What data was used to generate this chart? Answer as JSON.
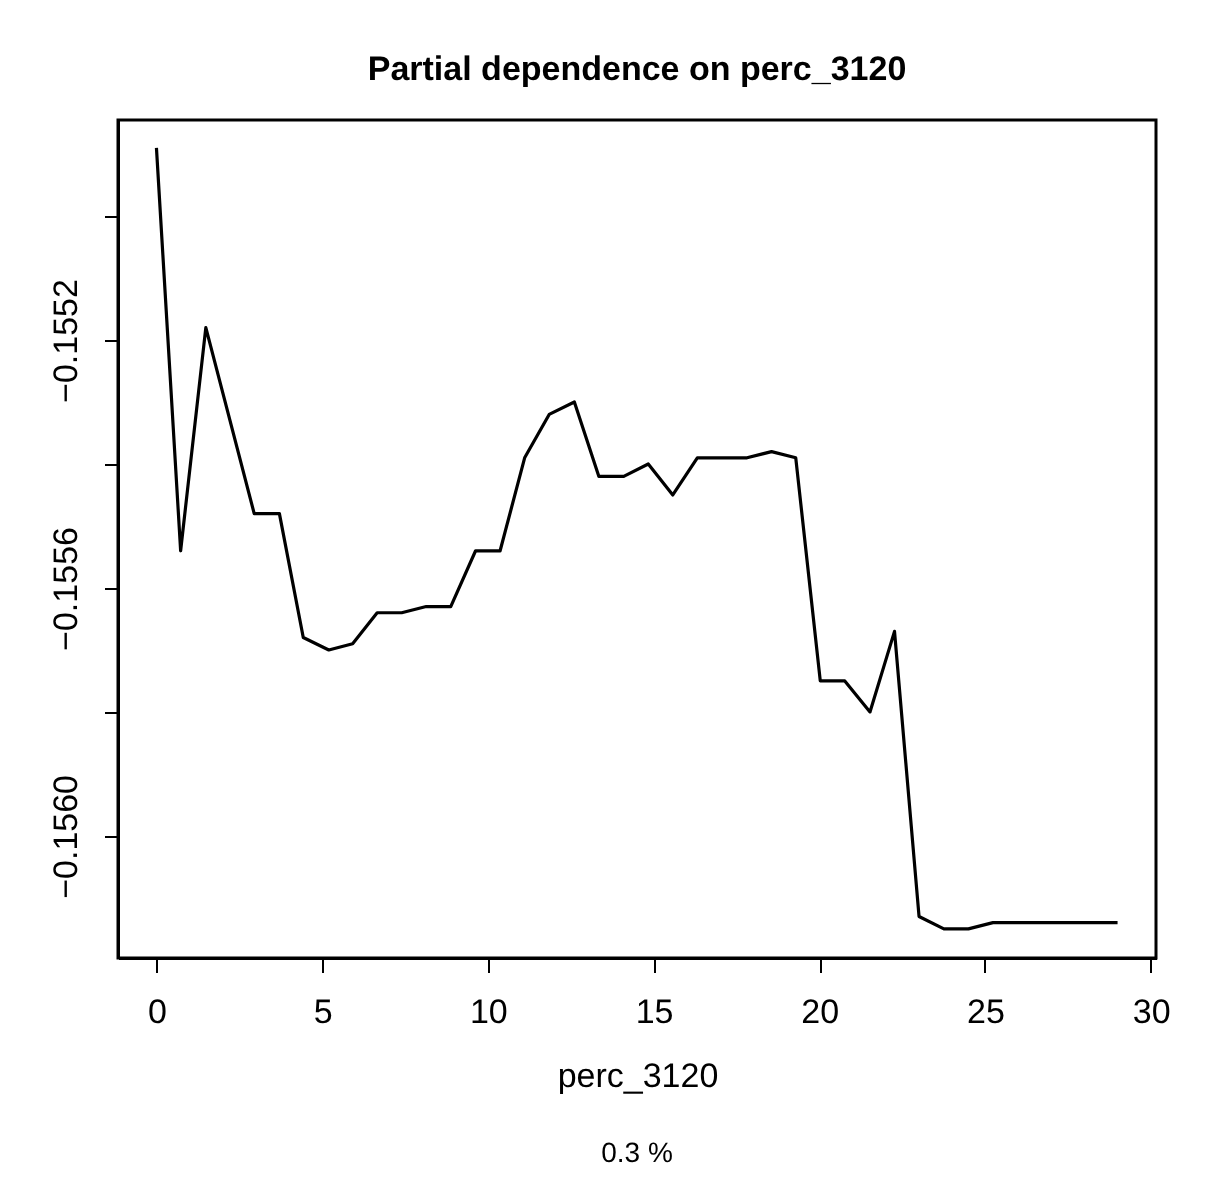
{
  "chart_data": {
    "type": "line",
    "title": "Partial dependence on perc_3120",
    "xlabel": "perc_3120",
    "annotations": [
      "0.3 %"
    ],
    "x": [
      0,
      0.73,
      1.49,
      2.95,
      3.71,
      4.43,
      5.2,
      5.92,
      6.66,
      7.4,
      8.14,
      8.88,
      9.63,
      10.37,
      11.11,
      11.85,
      12.61,
      13.35,
      14.1,
      14.84,
      15.58,
      16.32,
      17.82,
      18.56,
      19.29,
      20.03,
      20.77,
      21.53,
      22.27,
      23.01,
      23.76,
      24.5,
      25.24,
      29.0
    ],
    "series": [
      {
        "color": "#000000",
        "values": [
          -0.15489,
          -0.15554,
          -0.15518,
          -0.15548,
          -0.15548,
          -0.15568,
          -0.1557,
          -0.15569,
          -0.15564,
          -0.15564,
          -0.15563,
          -0.15563,
          -0.15554,
          -0.15554,
          -0.15539,
          -0.15532,
          -0.1553,
          -0.15542,
          -0.15542,
          -0.1554,
          -0.15545,
          -0.15539,
          -0.15539,
          -0.15538,
          -0.15539,
          -0.15575,
          -0.15575,
          -0.1558,
          -0.15567,
          -0.15613,
          -0.15615,
          -0.15615,
          -0.15614,
          -0.15614
        ]
      }
    ],
    "xlim": [
      -1.16,
      30.16
    ],
    "ylim": [
      -0.156197,
      -0.154845
    ],
    "xticks": [
      0,
      5,
      10,
      15,
      20,
      25,
      30
    ],
    "yticks": [
      {
        "value": -0.156,
        "label": "−0.1560"
      },
      {
        "value": -0.1558,
        "label": null
      },
      {
        "value": -0.1556,
        "label": "−0.1556"
      },
      {
        "value": -0.1554,
        "label": null
      },
      {
        "value": -0.1552,
        "label": "−0.1552"
      },
      {
        "value": -0.155,
        "label": null
      }
    ],
    "grid": false,
    "line_style": "solid",
    "marker": "none"
  }
}
